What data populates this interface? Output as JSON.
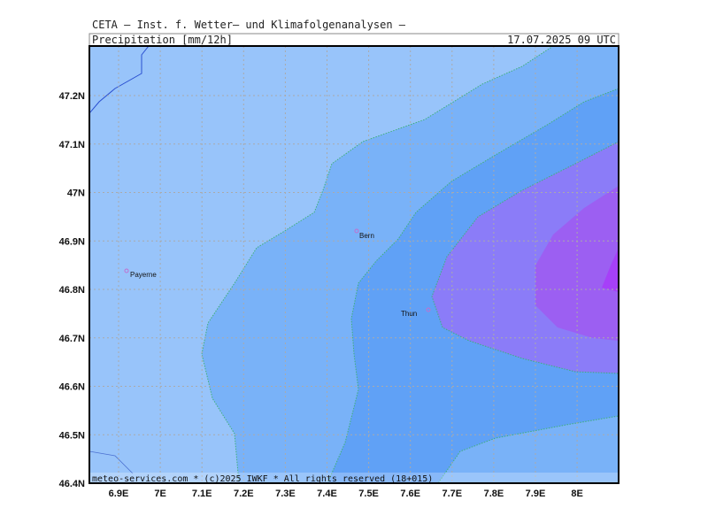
{
  "header": {
    "institute": "CETA — Inst. f. Wetter— und Klimafolgenanalysen —",
    "title": "Precipitation [mm/12h]",
    "date": "17.07.2025 09 UTC"
  },
  "map": {
    "x_ticks": [
      "6.9E",
      "7E",
      "7.1E",
      "7.2E",
      "7.3E",
      "7.4E",
      "7.5E",
      "7.6E",
      "7.7E",
      "7.8E",
      "7.9E",
      "8E"
    ],
    "y_ticks": [
      "47.2N",
      "47.1N",
      "47N",
      "46.9N",
      "46.8N",
      "46.7N",
      "46.6N",
      "46.5N",
      "46.4N"
    ],
    "cities": [
      "Bern",
      "Thun",
      "Payerne"
    ]
  },
  "footer": "meteo-services.com * (c)2025 IWKF * All rights reserved (18+015)"
}
